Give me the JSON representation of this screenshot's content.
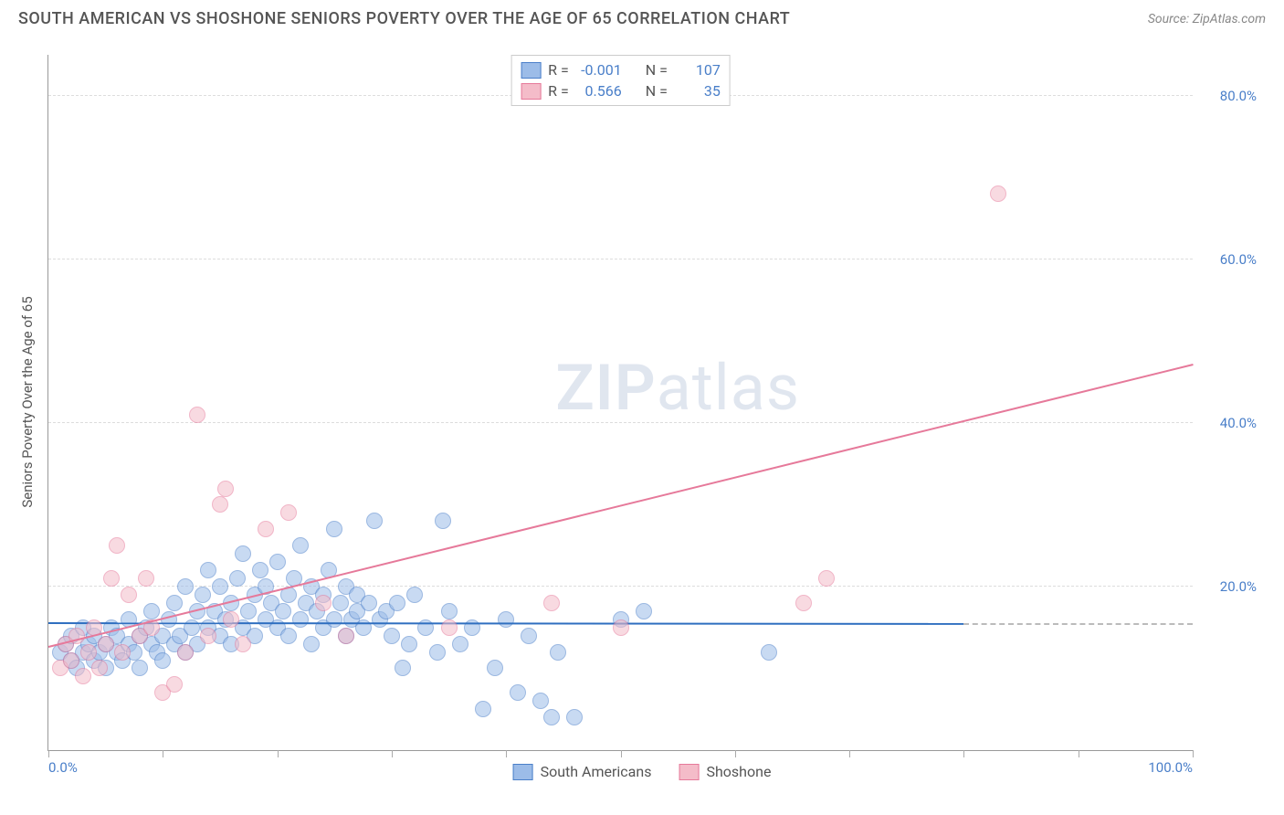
{
  "header": {
    "title": "SOUTH AMERICAN VS SHOSHONE SENIORS POVERTY OVER THE AGE OF 65 CORRELATION CHART",
    "source": "Source: ZipAtlas.com"
  },
  "watermark": {
    "zip": "ZIP",
    "atlas": "atlas"
  },
  "chart": {
    "type": "scatter",
    "background_color": "#ffffff",
    "grid_color": "#dddddd",
    "axis_color": "#999999",
    "tick_label_color": "#4a7fc9",
    "label_fontsize": 15,
    "y_axis_label": "Seniors Poverty Over the Age of 65",
    "xlim": [
      0,
      100
    ],
    "ylim": [
      0,
      85
    ],
    "x_ticks": [
      0,
      10,
      20,
      30,
      40,
      50,
      60,
      70,
      80,
      90,
      100
    ],
    "x_tick_labels": {
      "0": "0.0%",
      "100": "100.0%"
    },
    "y_ticks": [
      20,
      40,
      60,
      80
    ],
    "y_tick_labels": {
      "20": "20.0%",
      "40": "40.0%",
      "60": "60.0%",
      "80": "80.0%"
    },
    "marker_size": 18,
    "marker_opacity": 0.55,
    "series": [
      {
        "name": "South Americans",
        "fill_color": "#9cbce8",
        "stroke_color": "#4a7fc9",
        "reg_color": "#2f6fc0",
        "R": "-0.001",
        "N": "107",
        "regression": {
          "x1": 0,
          "y1": 15.4,
          "x2": 80,
          "y2": 15.3
        },
        "points": [
          [
            1,
            12
          ],
          [
            1.5,
            13
          ],
          [
            2,
            11
          ],
          [
            2,
            14
          ],
          [
            2.5,
            10
          ],
          [
            3,
            12
          ],
          [
            3,
            15
          ],
          [
            3.5,
            13
          ],
          [
            4,
            11
          ],
          [
            4,
            14
          ],
          [
            4.5,
            12
          ],
          [
            5,
            10
          ],
          [
            5,
            13
          ],
          [
            5.5,
            15
          ],
          [
            6,
            12
          ],
          [
            6,
            14
          ],
          [
            6.5,
            11
          ],
          [
            7,
            13
          ],
          [
            7,
            16
          ],
          [
            7.5,
            12
          ],
          [
            8,
            14
          ],
          [
            8,
            10
          ],
          [
            8.5,
            15
          ],
          [
            9,
            13
          ],
          [
            9,
            17
          ],
          [
            9.5,
            12
          ],
          [
            10,
            14
          ],
          [
            10,
            11
          ],
          [
            10.5,
            16
          ],
          [
            11,
            13
          ],
          [
            11,
            18
          ],
          [
            11.5,
            14
          ],
          [
            12,
            12
          ],
          [
            12,
            20
          ],
          [
            12.5,
            15
          ],
          [
            13,
            17
          ],
          [
            13,
            13
          ],
          [
            13.5,
            19
          ],
          [
            14,
            15
          ],
          [
            14,
            22
          ],
          [
            14.5,
            17
          ],
          [
            15,
            14
          ],
          [
            15,
            20
          ],
          [
            15.5,
            16
          ],
          [
            16,
            18
          ],
          [
            16,
            13
          ],
          [
            16.5,
            21
          ],
          [
            17,
            15
          ],
          [
            17,
            24
          ],
          [
            17.5,
            17
          ],
          [
            18,
            19
          ],
          [
            18,
            14
          ],
          [
            18.5,
            22
          ],
          [
            19,
            16
          ],
          [
            19,
            20
          ],
          [
            19.5,
            18
          ],
          [
            20,
            15
          ],
          [
            20,
            23
          ],
          [
            20.5,
            17
          ],
          [
            21,
            19
          ],
          [
            21,
            14
          ],
          [
            21.5,
            21
          ],
          [
            22,
            16
          ],
          [
            22,
            25
          ],
          [
            22.5,
            18
          ],
          [
            23,
            20
          ],
          [
            23,
            13
          ],
          [
            23.5,
            17
          ],
          [
            24,
            19
          ],
          [
            24,
            15
          ],
          [
            24.5,
            22
          ],
          [
            25,
            16
          ],
          [
            25,
            27
          ],
          [
            25.5,
            18
          ],
          [
            26,
            14
          ],
          [
            26,
            20
          ],
          [
            26.5,
            16
          ],
          [
            27,
            17
          ],
          [
            27,
            19
          ],
          [
            27.5,
            15
          ],
          [
            28,
            18
          ],
          [
            28.5,
            28
          ],
          [
            29,
            16
          ],
          [
            29.5,
            17
          ],
          [
            30,
            14
          ],
          [
            30.5,
            18
          ],
          [
            31,
            10
          ],
          [
            31.5,
            13
          ],
          [
            32,
            19
          ],
          [
            33,
            15
          ],
          [
            34,
            12
          ],
          [
            34.5,
            28
          ],
          [
            35,
            17
          ],
          [
            36,
            13
          ],
          [
            37,
            15
          ],
          [
            38,
            5
          ],
          [
            39,
            10
          ],
          [
            40,
            16
          ],
          [
            41,
            7
          ],
          [
            42,
            14
          ],
          [
            43,
            6
          ],
          [
            44,
            4
          ],
          [
            44.5,
            12
          ],
          [
            46,
            4
          ],
          [
            50,
            16
          ],
          [
            52,
            17
          ],
          [
            63,
            12
          ]
        ]
      },
      {
        "name": "Shoshone",
        "fill_color": "#f4bcc9",
        "stroke_color": "#e6799a",
        "reg_color": "#e6799a",
        "R": "0.566",
        "N": "35",
        "regression": {
          "x1": 0,
          "y1": 12.5,
          "x2": 100,
          "y2": 47
        },
        "points": [
          [
            1,
            10
          ],
          [
            1.5,
            13
          ],
          [
            2,
            11
          ],
          [
            2.5,
            14
          ],
          [
            3,
            9
          ],
          [
            3.5,
            12
          ],
          [
            4,
            15
          ],
          [
            4.5,
            10
          ],
          [
            5,
            13
          ],
          [
            5.5,
            21
          ],
          [
            6,
            25
          ],
          [
            6.5,
            12
          ],
          [
            7,
            19
          ],
          [
            8,
            14
          ],
          [
            8.5,
            21
          ],
          [
            9,
            15
          ],
          [
            10,
            7
          ],
          [
            11,
            8
          ],
          [
            12,
            12
          ],
          [
            13,
            41
          ],
          [
            14,
            14
          ],
          [
            15,
            30
          ],
          [
            15.5,
            32
          ],
          [
            16,
            16
          ],
          [
            17,
            13
          ],
          [
            19,
            27
          ],
          [
            21,
            29
          ],
          [
            24,
            18
          ],
          [
            26,
            14
          ],
          [
            35,
            15
          ],
          [
            44,
            18
          ],
          [
            50,
            15
          ],
          [
            66,
            18
          ],
          [
            68,
            21
          ],
          [
            83,
            68
          ]
        ]
      }
    ]
  },
  "stats_box": {
    "R_label": "R =",
    "N_label": "N ="
  },
  "legend": {
    "items": [
      "South Americans",
      "Shoshone"
    ]
  }
}
